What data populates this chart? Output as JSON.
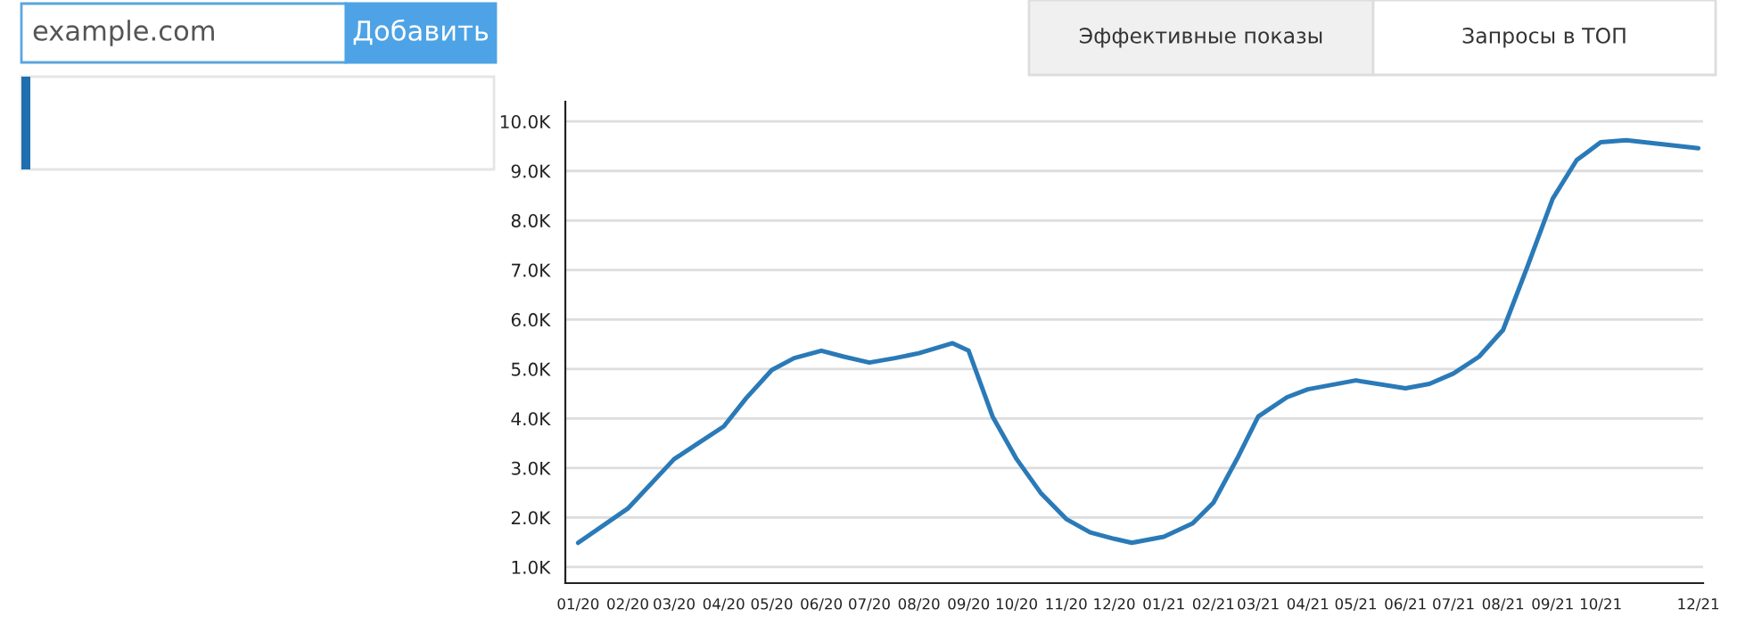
{
  "chart_data": {
    "type": "line",
    "annotations": [
      "example.com",
      "Добавить",
      "Эффективные показы",
      "Запросы в ТОП"
    ],
    "x": [
      "2020-01-01",
      "2020-02-01",
      "2020-03-01",
      "2020-03-16",
      "2020-04-01",
      "2020-04-15",
      "2020-05-01",
      "2020-05-15",
      "2020-06-01",
      "2020-06-15",
      "2020-07-01",
      "2020-07-17",
      "2020-08-01",
      "2020-08-22",
      "2020-09-01",
      "2020-09-16",
      "2020-10-01",
      "2020-10-16",
      "2020-11-01",
      "2020-11-16",
      "2020-12-01",
      "2020-12-12",
      "2021-01-01",
      "2021-01-19",
      "2021-02-01",
      "2021-02-16",
      "2021-03-01",
      "2021-03-19",
      "2021-04-01",
      "2021-05-01",
      "2021-06-01",
      "2021-06-16",
      "2021-07-01",
      "2021-07-17",
      "2021-08-01",
      "2021-08-16",
      "2021-09-01",
      "2021-09-16",
      "2021-10-01",
      "2021-10-17",
      "2021-12-01"
    ],
    "series": [
      {
        "color": "#2a7ab8",
        "values": [
          1490,
          2180,
          3180,
          3500,
          3840,
          4410,
          4980,
          5220,
          5370,
          5250,
          5130,
          5220,
          5320,
          5520,
          5370,
          4040,
          3180,
          2500,
          1970,
          1700,
          1570,
          1490,
          1610,
          1880,
          2300,
          3200,
          4040,
          4430,
          4590,
          4770,
          4610,
          4700,
          4910,
          5250,
          5790,
          7050,
          8440,
          9220,
          9580,
          9620,
          9460
        ]
      }
    ],
    "xlim": [
      "2019-12-24",
      "2021-12-04"
    ],
    "xticks": [
      {
        "value": "2020-01-01",
        "label": "01/20"
      },
      {
        "value": "2020-02-01",
        "label": "02/20"
      },
      {
        "value": "2020-03-01",
        "label": "03/20"
      },
      {
        "value": "2020-04-01",
        "label": "04/20"
      },
      {
        "value": "2020-05-01",
        "label": "05/20"
      },
      {
        "value": "2020-06-01",
        "label": "06/20"
      },
      {
        "value": "2020-07-01",
        "label": "07/20"
      },
      {
        "value": "2020-08-01",
        "label": "08/20"
      },
      {
        "value": "2020-09-01",
        "label": "09/20"
      },
      {
        "value": "2020-10-01",
        "label": "10/20"
      },
      {
        "value": "2020-11-01",
        "label": "11/20"
      },
      {
        "value": "2020-12-01",
        "label": "12/20"
      },
      {
        "value": "2021-01-01",
        "label": "01/21"
      },
      {
        "value": "2021-02-01",
        "label": "02/21"
      },
      {
        "value": "2021-03-01",
        "label": "03/21"
      },
      {
        "value": "2021-04-01",
        "label": "04/21"
      },
      {
        "value": "2021-05-01",
        "label": "05/21"
      },
      {
        "value": "2021-06-01",
        "label": "06/21"
      },
      {
        "value": "2021-07-01",
        "label": "07/21"
      },
      {
        "value": "2021-08-01",
        "label": "08/21"
      },
      {
        "value": "2021-09-01",
        "label": "09/21"
      },
      {
        "value": "2021-10-01",
        "label": "10/21"
      },
      {
        "value": "2021-12-01",
        "label": "12/21"
      }
    ],
    "ylim": [
      675,
      10400
    ],
    "yticks": [
      {
        "value": 1000,
        "label": "1.0K"
      },
      {
        "value": 2000,
        "label": "2.0K"
      },
      {
        "value": 3000,
        "label": "3.0K"
      },
      {
        "value": 4000,
        "label": "4.0K"
      },
      {
        "value": 5000,
        "label": "5.0K"
      },
      {
        "value": 6000,
        "label": "6.0K"
      },
      {
        "value": 7000,
        "label": "7.0K"
      },
      {
        "value": 8000,
        "label": "8.0K"
      },
      {
        "value": 9000,
        "label": "9.0K"
      },
      {
        "value": 10000,
        "label": "10.0K"
      }
    ],
    "grid": "y",
    "legend": false,
    "marker": "none",
    "line_style": "solid"
  }
}
